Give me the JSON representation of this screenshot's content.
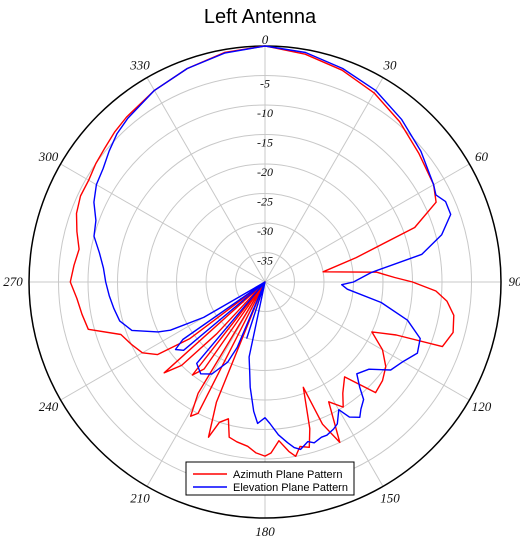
{
  "chart_data": {
    "type": "polar-line",
    "title": "Left Antenna",
    "radial_axis": {
      "range": [
        -40,
        0
      ],
      "ticks": [
        "0",
        "-5",
        "-10",
        "-15",
        "-20",
        "-25",
        "-30",
        "-35"
      ],
      "tick_values": [
        0,
        -5,
        -10,
        -15,
        -20,
        -25,
        -30,
        -35
      ]
    },
    "angular_axis": {
      "ticks": [
        "0",
        "30",
        "60",
        "90",
        "120",
        "150",
        "180",
        "210",
        "240",
        "270",
        "300",
        "330"
      ],
      "tick_values": [
        0,
        30,
        60,
        90,
        120,
        150,
        180,
        210,
        240,
        270,
        300,
        330
      ],
      "direction": "clockwise",
      "zero": "top"
    },
    "grid": true,
    "legend_position": "bottom-center",
    "series": [
      {
        "name": "Azimuth Plane Pattern",
        "color": "#ff0000",
        "angles": [
          0,
          10,
          20,
          30,
          40,
          50,
          60,
          65,
          70,
          75,
          80,
          85,
          88,
          90,
          93,
          96,
          100,
          105,
          110,
          112,
          115,
          120,
          125,
          130,
          135,
          140,
          145,
          148,
          152,
          155,
          158,
          160,
          163,
          165,
          168,
          170,
          172,
          175,
          178,
          180,
          183,
          186,
          190,
          193,
          195,
          198,
          200,
          202,
          205,
          207,
          209,
          211,
          213,
          215,
          218,
          220,
          223,
          225,
          228,
          230,
          233,
          236,
          240,
          245,
          250,
          255,
          260,
          265,
          270,
          275,
          280,
          285,
          290,
          295,
          300,
          305,
          310,
          315,
          320,
          330,
          340,
          350,
          360
        ],
        "values": [
          0,
          -0.8,
          -1.8,
          -3,
          -4.5,
          -6,
          -7,
          -8,
          -13,
          -24,
          -30,
          -21,
          -18,
          -15,
          -11,
          -9,
          -7.5,
          -7,
          -8,
          -16,
          -20,
          -17,
          -15,
          -14,
          -13.5,
          -19,
          -17,
          -15,
          -17,
          -10,
          -14,
          -21,
          -14,
          -11,
          -11.5,
          -10,
          -11,
          -13,
          -11,
          -10.5,
          -11,
          -12,
          -12.5,
          -13,
          -16,
          -15,
          -12,
          -18,
          -40,
          -15,
          -14,
          -18,
          -40,
          -22,
          -20,
          -40,
          -28,
          -20,
          -17,
          -40,
          -24,
          -18,
          -16,
          -15,
          -14,
          -9,
          -8.5,
          -8,
          -7,
          -7.5,
          -8,
          -7,
          -6,
          -5.5,
          -5.5,
          -5,
          -4.6,
          -4,
          -3.5,
          -2.5,
          -1.5,
          -0.5,
          0
        ]
      },
      {
        "name": "Elevation Plane Pattern",
        "color": "#0000ff",
        "angles": [
          0,
          10,
          20,
          30,
          40,
          50,
          60,
          63,
          66,
          70,
          75,
          80,
          85,
          90,
          92,
          95,
          100,
          105,
          110,
          115,
          120,
          125,
          130,
          135,
          138,
          140,
          143,
          145,
          148,
          150,
          153,
          155,
          158,
          160,
          163,
          165,
          168,
          170,
          172,
          175,
          178,
          180,
          183,
          185,
          188,
          190,
          192,
          195,
          198,
          200,
          203,
          205,
          210,
          215,
          220,
          225,
          230,
          233,
          235,
          238,
          240,
          243,
          245,
          250,
          255,
          260,
          265,
          270,
          275,
          280,
          285,
          290,
          295,
          300,
          305,
          310,
          315,
          320,
          330,
          340,
          350,
          360
        ],
        "values": [
          0,
          -0.5,
          -1.5,
          -2.5,
          -4,
          -5.5,
          -7,
          -7.5,
          -6.5,
          -6.5,
          -9,
          -13,
          -22,
          -25,
          -27,
          -26,
          -20,
          -15,
          -12,
          -11.5,
          -13,
          -14,
          -17,
          -18,
          -16,
          -14,
          -13,
          -12,
          -13,
          -15,
          -13,
          -12.5,
          -12,
          -12,
          -11.5,
          -12,
          -11,
          -11.5,
          -12.5,
          -14,
          -16,
          -17,
          -16,
          -18,
          -22,
          -25,
          -27,
          -40,
          -30,
          -40,
          -28,
          -25,
          -22,
          -21,
          -22,
          -40,
          -22,
          -21,
          -23,
          -40,
          -28,
          -22,
          -20,
          -16,
          -14.5,
          -14,
          -13.5,
          -13,
          -12.5,
          -11.5,
          -10,
          -9.5,
          -8,
          -7,
          -6.5,
          -5.5,
          -4.5,
          -3.8,
          -2.5,
          -1.5,
          -0.6,
          0
        ]
      }
    ]
  }
}
